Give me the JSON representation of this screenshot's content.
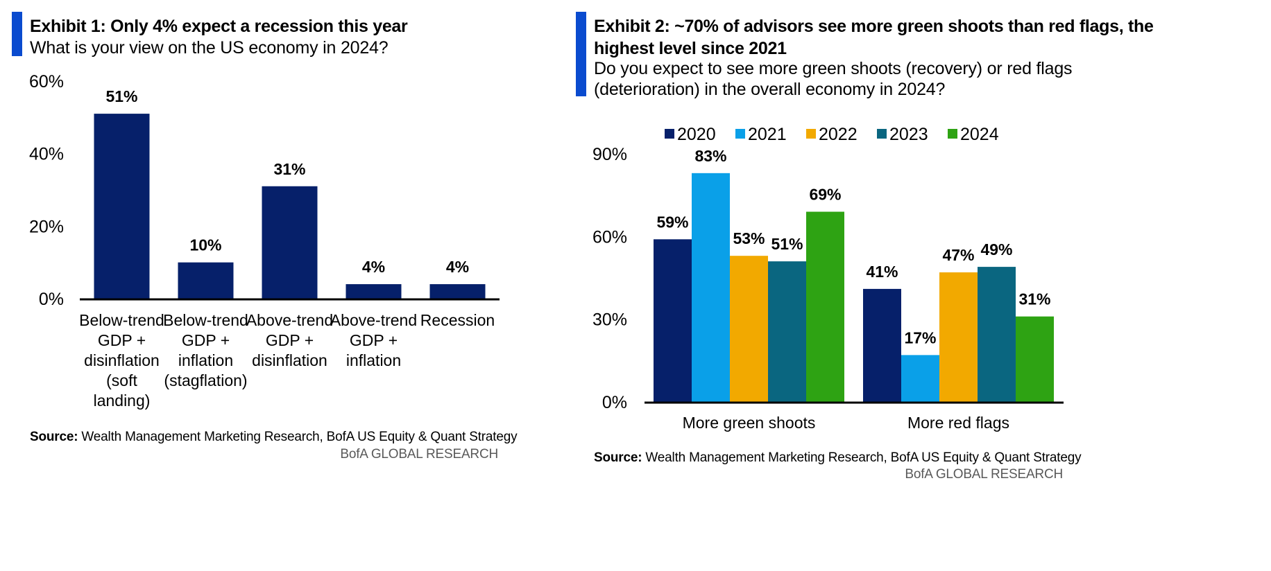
{
  "panel1": {
    "title": "Exhibit 1: Only 4% expect a recession this year",
    "subtitle": "What is your view on the US economy in 2024?",
    "source_label": "Source:",
    "source_text": " Wealth Management Marketing Research, BofA US Equity & Quant Strategy",
    "brand": "BofA GLOBAL RESEARCH"
  },
  "panel2": {
    "title_line1": "Exhibit 2: ~70% of advisors see more green shoots than red flags, the",
    "title_line2": "highest level since 2021",
    "subtitle_line1": "Do you expect to see more green shoots (recovery) or red flags",
    "subtitle_line2": "(deterioration) in the overall economy in 2024?",
    "source_label": "Source:",
    "source_text": " Wealth Management Marketing Research, BofA US Equity & Quant Strategy",
    "brand": "BofA GLOBAL RESEARCH"
  },
  "chart_data": [
    {
      "type": "bar",
      "categories": [
        [
          "Below-trend",
          "GDP +",
          "disinflation",
          "(soft",
          "landing)"
        ],
        [
          "Below-trend",
          "GDP +",
          "inflation",
          "(stagflation)"
        ],
        [
          "Above-trend",
          "GDP +",
          "disinflation"
        ],
        [
          "Above-trend",
          "GDP +",
          "inflation"
        ],
        [
          "Recession"
        ]
      ],
      "values": [
        51,
        10,
        31,
        4,
        4
      ],
      "data_labels": [
        "51%",
        "10%",
        "31%",
        "4%",
        "4%"
      ],
      "ylim": [
        0,
        60
      ],
      "yticks": [
        0,
        20,
        40,
        60
      ],
      "ytick_labels": [
        "0%",
        "20%",
        "40%",
        "60%"
      ],
      "color": "#06206a",
      "grid": false,
      "legend": "none"
    },
    {
      "type": "bar",
      "categories": [
        "More green shoots",
        "More red flags"
      ],
      "series": [
        {
          "name": "2020",
          "values": [
            59,
            41
          ],
          "labels": [
            "59%",
            "41%"
          ],
          "color": "#06206a"
        },
        {
          "name": "2021",
          "values": [
            83,
            17
          ],
          "labels": [
            "83%",
            "17%"
          ],
          "color": "#0aa0e8"
        },
        {
          "name": "2022",
          "values": [
            53,
            47
          ],
          "labels": [
            "53%",
            "47%"
          ],
          "color": "#f2a900"
        },
        {
          "name": "2023",
          "values": [
            51,
            49
          ],
          "labels": [
            "51%",
            "49%"
          ],
          "color": "#0a6680"
        },
        {
          "name": "2024",
          "values": [
            69,
            31
          ],
          "labels": [
            "69%",
            "31%"
          ],
          "color": "#2ea313"
        }
      ],
      "ylim": [
        0,
        90
      ],
      "yticks": [
        0,
        30,
        60,
        90
      ],
      "ytick_labels": [
        "0%",
        "30%",
        "60%",
        "90%"
      ],
      "grid": false,
      "legend": "top"
    }
  ]
}
